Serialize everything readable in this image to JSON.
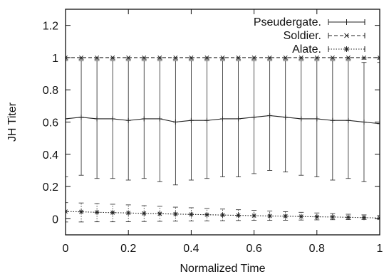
{
  "chart_data": {
    "type": "line",
    "title": "",
    "xlabel": "Normalized Time",
    "ylabel": "JH Titer",
    "xlim": [
      0,
      1
    ],
    "ylim": [
      -0.1,
      1.3
    ],
    "xticks": [
      0,
      0.2,
      0.4,
      0.6,
      0.8,
      1
    ],
    "xtick_labels": [
      "0",
      "0.2",
      "0.4",
      "0.6",
      "0.8",
      "1"
    ],
    "yticks": [
      0,
      0.2,
      0.4,
      0.6,
      0.8,
      1,
      1.2
    ],
    "ytick_labels": [
      "0",
      "0.2",
      "0.4",
      "0.6",
      "0.8",
      "1",
      "1.2"
    ],
    "grid": false,
    "legend_position": "top-right",
    "x": [
      0,
      0.05,
      0.1,
      0.15,
      0.2,
      0.25,
      0.3,
      0.35,
      0.4,
      0.45,
      0.5,
      0.55,
      0.6,
      0.65,
      0.7,
      0.75,
      0.8,
      0.85,
      0.9,
      0.95,
      1
    ],
    "series": [
      {
        "name": "Pseudergate.",
        "style": "solid",
        "marker": "+",
        "color": "#222222",
        "values": [
          0.62,
          0.63,
          0.62,
          0.62,
          0.61,
          0.62,
          0.62,
          0.6,
          0.61,
          0.61,
          0.62,
          0.62,
          0.63,
          0.64,
          0.63,
          0.62,
          0.62,
          0.61,
          0.61,
          0.6,
          0.59
        ],
        "lower": [
          0.26,
          0.27,
          0.25,
          0.25,
          0.24,
          0.25,
          0.23,
          0.21,
          0.24,
          0.25,
          0.26,
          0.26,
          0.28,
          0.3,
          0.29,
          0.27,
          0.26,
          0.24,
          0.25,
          0.23,
          0.2
        ],
        "upper": [
          0.98,
          0.98,
          0.98,
          0.98,
          0.98,
          0.98,
          0.98,
          0.98,
          0.98,
          0.98,
          0.98,
          0.98,
          0.98,
          0.98,
          0.98,
          0.98,
          0.98,
          0.98,
          0.98,
          0.97,
          0.97
        ]
      },
      {
        "name": "Soldier.",
        "style": "dashed",
        "marker": "x",
        "color": "#222222",
        "values": [
          1.0,
          1.0,
          1.0,
          1.0,
          1.0,
          1.0,
          1.0,
          1.0,
          1.0,
          1.0,
          1.0,
          1.0,
          1.0,
          1.0,
          1.0,
          1.0,
          1.0,
          1.0,
          1.0,
          1.0,
          1.0
        ],
        "lower": [
          0.99,
          0.99,
          0.99,
          0.99,
          0.99,
          0.99,
          0.99,
          0.99,
          0.99,
          0.99,
          0.99,
          0.99,
          0.99,
          0.99,
          0.99,
          0.99,
          0.99,
          0.99,
          0.99,
          0.99,
          0.99
        ],
        "upper": [
          1.0,
          1.0,
          1.0,
          1.0,
          1.0,
          1.0,
          1.0,
          1.0,
          1.0,
          1.0,
          1.0,
          1.0,
          1.0,
          1.0,
          1.0,
          1.0,
          1.0,
          1.0,
          1.0,
          1.0,
          1.0
        ]
      },
      {
        "name": "Alate.",
        "style": "dotted",
        "marker": "*",
        "color": "#222222",
        "values": [
          0.045,
          0.043,
          0.04,
          0.038,
          0.036,
          0.033,
          0.031,
          0.029,
          0.027,
          0.025,
          0.023,
          0.021,
          0.019,
          0.017,
          0.016,
          0.014,
          0.012,
          0.011,
          0.009,
          0.007,
          0.005
        ],
        "lower": [
          -0.02,
          -0.02,
          -0.019,
          -0.019,
          -0.018,
          -0.017,
          -0.016,
          -0.015,
          -0.014,
          -0.013,
          -0.012,
          -0.011,
          -0.01,
          -0.01,
          -0.009,
          -0.008,
          -0.007,
          -0.006,
          -0.005,
          -0.004,
          -0.003
        ],
        "upper": [
          0.1,
          0.098,
          0.094,
          0.09,
          0.086,
          0.081,
          0.077,
          0.072,
          0.068,
          0.064,
          0.06,
          0.056,
          0.052,
          0.048,
          0.044,
          0.04,
          0.036,
          0.032,
          0.028,
          0.024,
          0.02
        ]
      }
    ]
  }
}
